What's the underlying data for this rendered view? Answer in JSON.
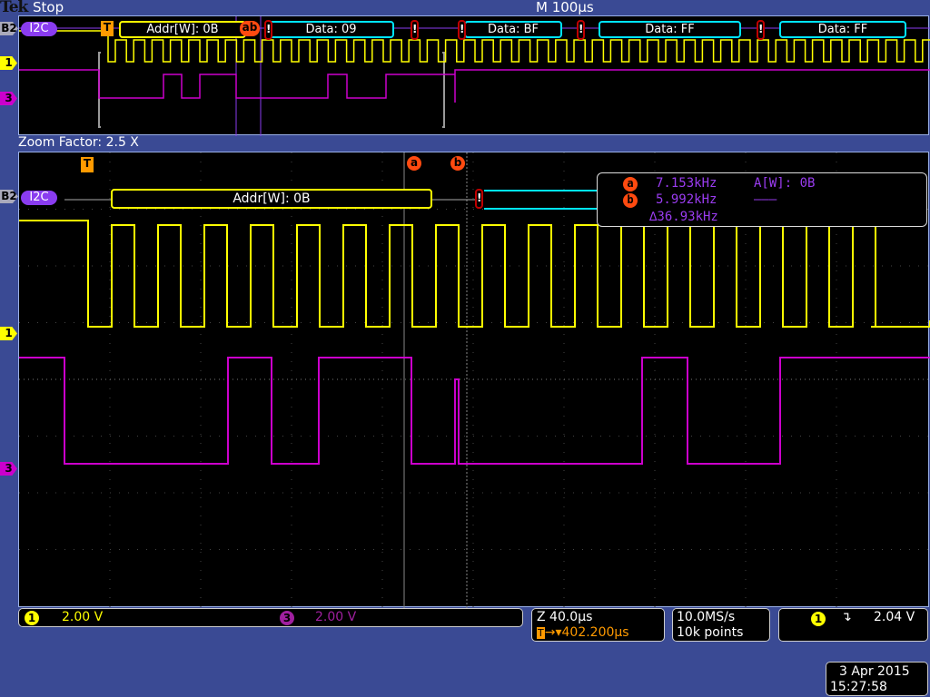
{
  "header": {
    "brand": "Tek",
    "state": "Stop",
    "timebase": "M 100µs"
  },
  "overview": {
    "bus_label": "I2C",
    "bus_channel": "B2",
    "packets": [
      {
        "label": "Addr[W]: 0B",
        "color": "#ffff00"
      },
      {
        "label": "Data: 09",
        "color": "#00e5ff"
      },
      {
        "label": "Data: BF",
        "color": "#00e5ff"
      },
      {
        "label": "Data: FF",
        "color": "#00e5ff"
      },
      {
        "label": "Data: FF",
        "color": "#00e5ff"
      }
    ],
    "error_mark": "!",
    "trigger_mark": "T",
    "cursor_marks": "ab"
  },
  "zoom": {
    "label": "Zoom Factor: 2.5 X",
    "bus_label": "I2C",
    "bus_channel": "B2",
    "packet": "Addr[W]: 0B",
    "error_mark": "!",
    "trigger_mark": "T",
    "cursor_a": "a",
    "cursor_b": "b"
  },
  "channels": {
    "ch1": "1",
    "ch3": "3",
    "ch1_color": "#ffff00",
    "ch3_color": "#cc00cc"
  },
  "measurements": {
    "a_label": "a",
    "a_value": "7.153kHz",
    "a_decode": "A[W]: 0B",
    "b_label": "b",
    "b_value": "5.992kHz",
    "b_decode": "–––",
    "delta": "∆36.93kHz"
  },
  "status": {
    "ch1_num": "1",
    "ch1_scale": "2.00 V",
    "ch3_num": "3",
    "ch3_scale": "2.00 V",
    "zoom_scale": "Z 40.0µs",
    "trigger_pos": "402.200µs",
    "trigger_icon": "T",
    "sample_rate": "10.0MS/s",
    "record_length": "10k points",
    "trig_ch": "1",
    "trig_slope": "↴",
    "trig_level": "2.04 V",
    "date": "3 Apr  2015",
    "time": "15:27:58"
  }
}
